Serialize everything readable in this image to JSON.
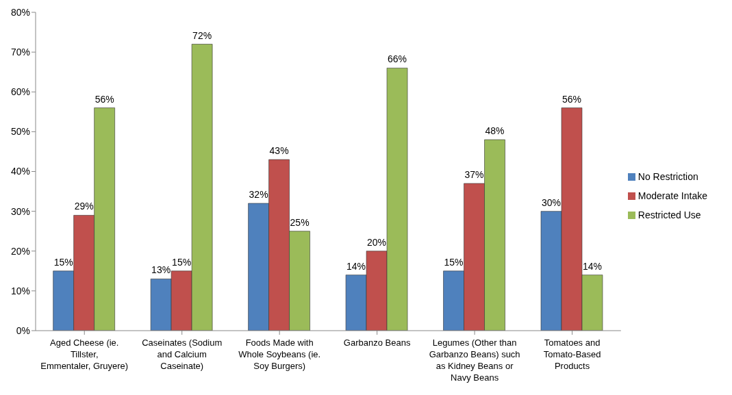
{
  "chart_data": {
    "type": "bar",
    "categories": [
      "Aged Cheese (ie. Tillster, Emmentaler, Gruyere)",
      "Caseinates (Sodium and Calcium Caseinate)",
      "Foods Made with Whole Soybeans (ie. Soy Burgers)",
      "Garbanzo Beans",
      "Legumes (Other than Garbanzo Beans) such as Kidney Beans or Navy Beans",
      "Tomatoes and Tomato-Based Products"
    ],
    "series": [
      {
        "name": "No Restriction",
        "color": "#4f81bd",
        "values": [
          15,
          13,
          32,
          14,
          15,
          30
        ],
        "value_labels": [
          "15%",
          "13%",
          "32%",
          "14%",
          "15%",
          "30%"
        ]
      },
      {
        "name": "Moderate Intake",
        "color": "#c0504d",
        "values": [
          29,
          15,
          43,
          20,
          37,
          56
        ],
        "value_labels": [
          "29%",
          "15%",
          "43%",
          "20%",
          "37%",
          "56%"
        ]
      },
      {
        "name": "Restricted Use",
        "color": "#9bbb59",
        "values": [
          56,
          72,
          25,
          66,
          48,
          14
        ],
        "value_labels": [
          "56%",
          "72%",
          "25%",
          "66%",
          "48%",
          "14%"
        ]
      }
    ],
    "ylim": [
      0,
      80
    ],
    "yticks": [
      {
        "value": 0,
        "label": "0%"
      },
      {
        "value": 10,
        "label": "10%"
      },
      {
        "value": 20,
        "label": "20%"
      },
      {
        "value": 30,
        "label": "30%"
      },
      {
        "value": 40,
        "label": "40%"
      },
      {
        "value": 50,
        "label": "50%"
      },
      {
        "value": 60,
        "label": "60%"
      },
      {
        "value": 70,
        "label": "70%"
      },
      {
        "value": 80,
        "label": "80%"
      }
    ],
    "grid": false,
    "legend": "right"
  }
}
